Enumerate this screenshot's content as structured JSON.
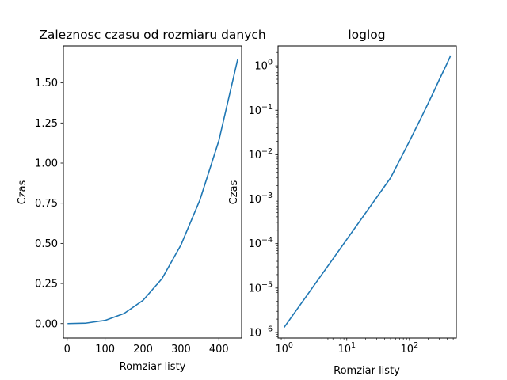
{
  "chart_data": [
    {
      "type": "line",
      "title": "Zaleznosc czasu od rozmiaru danych",
      "xlabel": "Romziar listy",
      "ylabel": "Czas",
      "xlim": [
        -10,
        460
      ],
      "ylim": [
        -0.09,
        1.73
      ],
      "xscale": "linear",
      "yscale": "linear",
      "grid": false,
      "x_ticks": [
        0,
        100,
        200,
        300,
        400
      ],
      "x_tick_labels": [
        "0",
        "100",
        "200",
        "300",
        "400"
      ],
      "y_ticks": [
        0.0,
        0.25,
        0.5,
        0.75,
        1.0,
        1.25,
        1.5
      ],
      "y_tick_labels": [
        "0.00",
        "0.25",
        "0.50",
        "0.75",
        "1.00",
        "1.25",
        "1.50"
      ],
      "line_color": "#1f77b4",
      "series": [
        {
          "x": [
            1,
            50,
            100,
            150,
            200,
            250,
            300,
            350,
            400,
            450
          ],
          "values": [
            0.0,
            0.003,
            0.02,
            0.063,
            0.145,
            0.28,
            0.49,
            0.77,
            1.14,
            1.65
          ]
        }
      ]
    },
    {
      "type": "line",
      "title": "loglog",
      "xlabel": "Romziar listy",
      "ylabel": "Czas",
      "xscale": "log",
      "yscale": "log",
      "xlim": [
        0.8,
        560
      ],
      "ylim": [
        7.5e-07,
        2.8
      ],
      "grid": false,
      "x_ticks": [
        1,
        10,
        100
      ],
      "x_tick_labels": [
        {
          "base": "10",
          "exp": "0"
        },
        {
          "base": "10",
          "exp": "1"
        },
        {
          "base": "10",
          "exp": "2"
        }
      ],
      "y_ticks": [
        1e-06,
        1e-05,
        0.0001,
        0.001,
        0.01,
        0.1,
        1
      ],
      "y_tick_labels": [
        {
          "base": "10",
          "exp": "−6"
        },
        {
          "base": "10",
          "exp": "−5"
        },
        {
          "base": "10",
          "exp": "−4"
        },
        {
          "base": "10",
          "exp": "−3"
        },
        {
          "base": "10",
          "exp": "−2"
        },
        {
          "base": "10",
          "exp": "−1"
        },
        {
          "base": "10",
          "exp": "0"
        }
      ],
      "line_color": "#1f77b4",
      "series": [
        {
          "x": [
            1,
            50,
            100,
            150,
            200,
            250,
            300,
            350,
            400,
            450
          ],
          "values": [
            1.3e-06,
            0.003,
            0.02,
            0.063,
            0.145,
            0.28,
            0.49,
            0.77,
            1.14,
            1.65
          ]
        }
      ]
    }
  ]
}
